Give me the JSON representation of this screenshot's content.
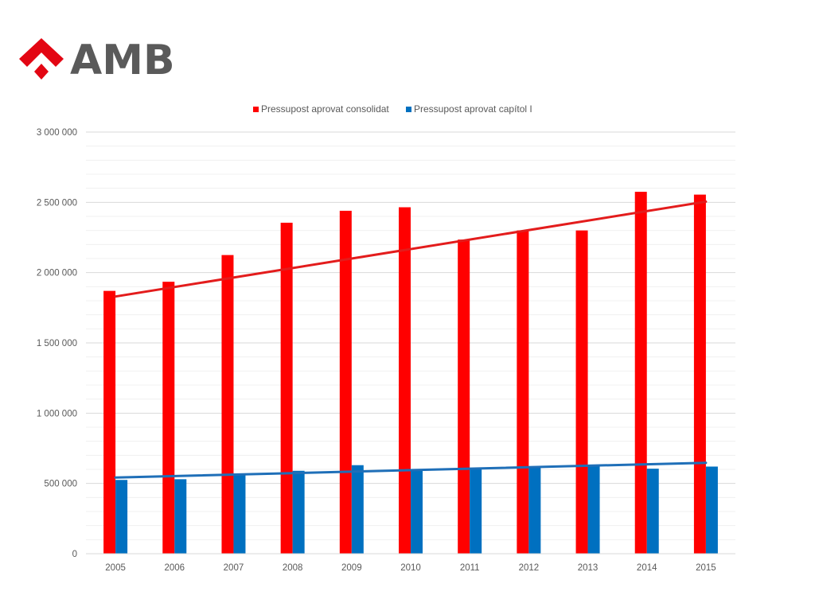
{
  "logo": {
    "text": "AMB",
    "mark_color": "#e30613",
    "text_color": "#5a5a5a"
  },
  "chart_data": {
    "type": "bar",
    "categories": [
      "2005",
      "2006",
      "2007",
      "2008",
      "2009",
      "2010",
      "2011",
      "2012",
      "2013",
      "2014",
      "2015"
    ],
    "series": [
      {
        "name": "Pressupost aprovat consolidat",
        "color": "#ff0000",
        "values": [
          1870000,
          1935000,
          2125000,
          2355000,
          2440000,
          2465000,
          2235000,
          2300000,
          2300000,
          2575000,
          2555000
        ],
        "trendline": {
          "type": "linear",
          "start": 1830000,
          "end": 2505000,
          "color": "#e31c1c"
        }
      },
      {
        "name": "Pressupost aprovat capítol I",
        "color": "#0070c0",
        "values": [
          525000,
          530000,
          565000,
          590000,
          630000,
          600000,
          610000,
          620000,
          625000,
          605000,
          620000
        ],
        "trendline": {
          "type": "linear",
          "start": 542000,
          "end": 647000,
          "color": "#1f6fb8"
        }
      }
    ],
    "ylim": [
      0,
      3000000
    ],
    "yticks": [
      {
        "value": 0,
        "label": "0"
      },
      {
        "value": 500000,
        "label": "500 000"
      },
      {
        "value": 1000000,
        "label": "1 000 000"
      },
      {
        "value": 1500000,
        "label": "1 500 000"
      },
      {
        "value": 2000000,
        "label": "2 000 000"
      },
      {
        "value": 2500000,
        "label": "2 500 000"
      },
      {
        "value": 3000000,
        "label": "3 000 000"
      }
    ],
    "minor_gridline_step": 100000,
    "grid": true,
    "legend_position": "top"
  }
}
